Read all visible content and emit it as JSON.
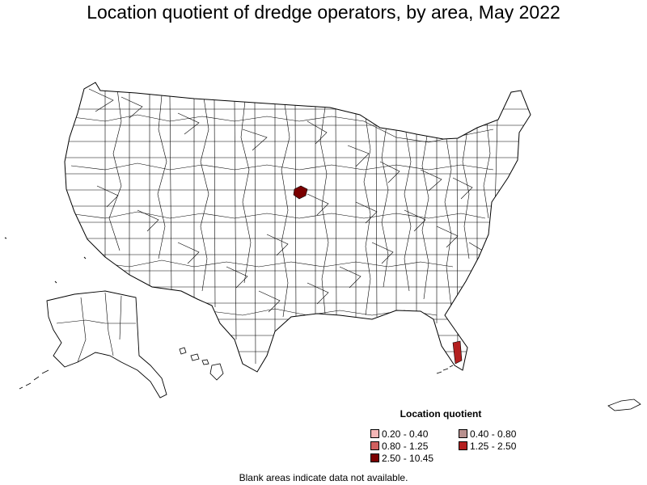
{
  "title": "Location quotient of dredge operators, by area, May 2022",
  "legend": {
    "title": "Location quotient",
    "items": [
      {
        "label": "0.20 - 0.40",
        "color": "#f4b6b6"
      },
      {
        "label": "0.40 - 0.80",
        "color": "#b8908e"
      },
      {
        "label": "0.80 - 1.25",
        "color": "#d0605f"
      },
      {
        "label": "1.25 - 2.50",
        "color": "#b42020"
      },
      {
        "label": "2.50 - 10.45",
        "color": "#7a0000"
      }
    ]
  },
  "highlighted_areas": [
    {
      "region": "central Nebraska",
      "legend_class": "2.50 - 10.45"
    },
    {
      "region": "southeast Florida",
      "legend_class": "1.25 - 2.50"
    }
  ],
  "footnote": "Blank areas indicate data not available."
}
